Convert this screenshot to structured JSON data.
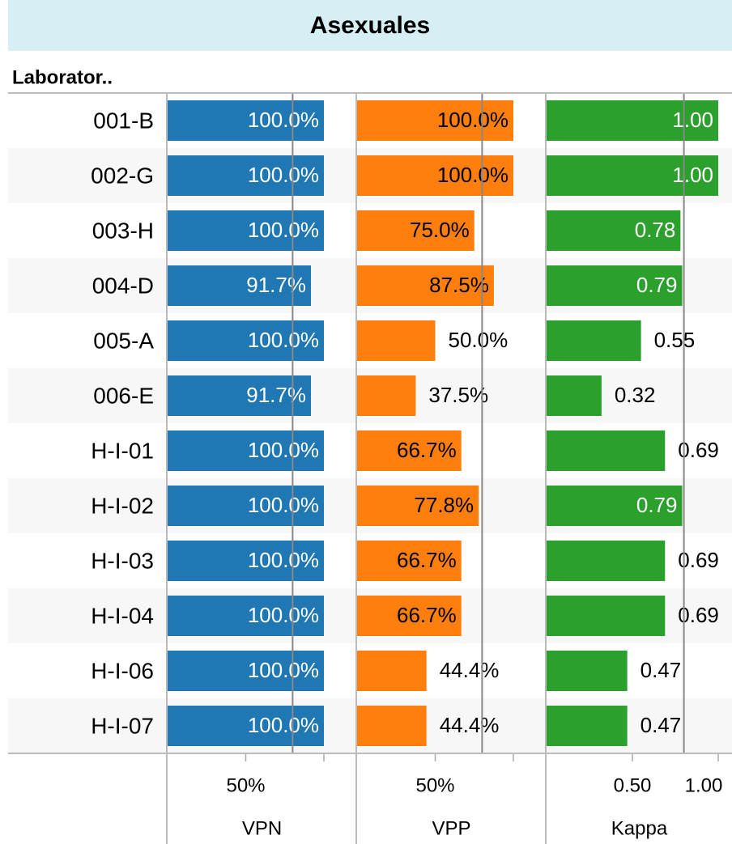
{
  "chart_data": {
    "type": "bar",
    "title": "Asexuales",
    "row_header": "Laborator..",
    "categories": [
      "001-B",
      "002-G",
      "003-H",
      "004-D",
      "005-A",
      "006-E",
      "H-I-01",
      "H-I-02",
      "H-I-03",
      "H-I-04",
      "H-I-06",
      "H-I-07"
    ],
    "series": [
      {
        "name": "VPN",
        "color": "#1f77b4",
        "values": [
          100,
          100,
          100,
          91.7,
          100,
          91.7,
          100,
          100,
          100,
          100,
          100,
          100
        ],
        "value_labels": [
          "100.0%",
          "100.0%",
          "100.0%",
          "91.7%",
          "100.0%",
          "91.7%",
          "100.0%",
          "100.0%",
          "100.0%",
          "100.0%",
          "100.0%",
          "100.0%"
        ],
        "xlim": [
          0,
          100
        ],
        "xticks": [
          {
            "value": 50,
            "label": "50%"
          }
        ],
        "unlabeled_ticks": [
          100
        ],
        "reference_line": 80
      },
      {
        "name": "VPP",
        "color": "#ff7f0e",
        "values": [
          100,
          100,
          75,
          87.5,
          50,
          37.5,
          66.7,
          77.8,
          66.7,
          66.7,
          44.4,
          44.4
        ],
        "value_labels": [
          "100.0%",
          "100.0%",
          "75.0%",
          "87.5%",
          "50.0%",
          "37.5%",
          "66.7%",
          "77.8%",
          "66.7%",
          "66.7%",
          "44.4%",
          "44.4%"
        ],
        "xlim": [
          0,
          100
        ],
        "xticks": [
          {
            "value": 50,
            "label": "50%"
          }
        ],
        "unlabeled_ticks": [
          100
        ],
        "reference_line": 80
      },
      {
        "name": "Kappa",
        "color": "#2ca02c",
        "values": [
          1,
          1,
          0.78,
          0.79,
          0.55,
          0.32,
          0.69,
          0.79,
          0.69,
          0.69,
          0.47,
          0.47
        ],
        "value_labels": [
          "1.00",
          "1.00",
          "0.78",
          "0.79",
          "0.55",
          "0.32",
          "0.69",
          "0.79",
          "0.69",
          "0.69",
          "0.47",
          "0.47"
        ],
        "xlim": [
          0,
          1
        ],
        "xticks": [
          {
            "value": 0.5,
            "label": "0.50"
          },
          {
            "value": 1,
            "label": "1.00"
          }
        ],
        "unlabeled_ticks": [],
        "reference_line": 0.8
      }
    ]
  }
}
